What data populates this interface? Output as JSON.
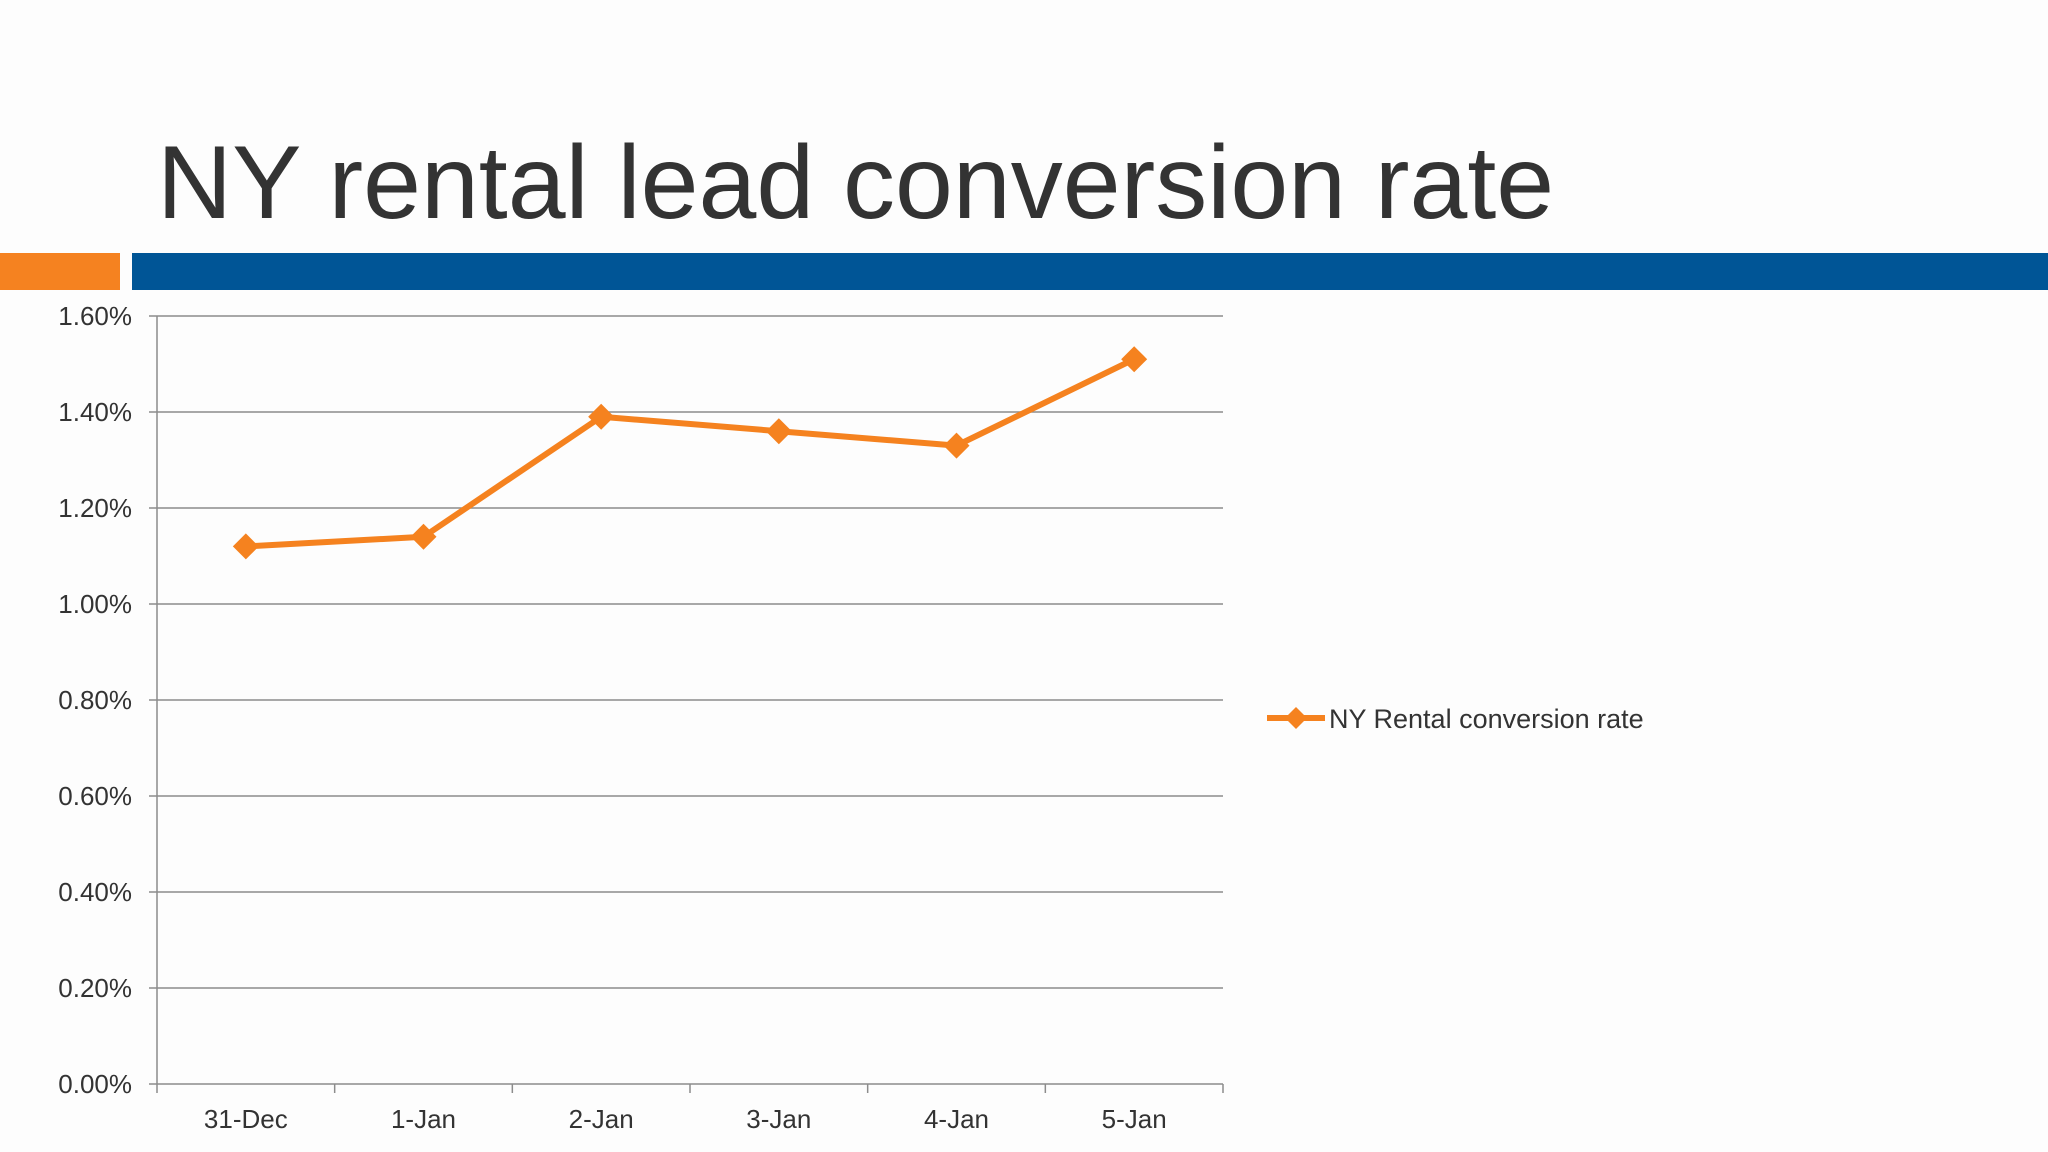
{
  "slide": {
    "title": "NY rental lead conversion rate"
  },
  "colors": {
    "accent_orange": "#f58220",
    "accent_blue": "#005596",
    "series": "#f5821f",
    "gridline": "#8c8c8c",
    "text": "#333333"
  },
  "chart_data": {
    "type": "line",
    "title": "",
    "xlabel": "",
    "ylabel": "",
    "categories": [
      "31-Dec",
      "1-Jan",
      "2-Jan",
      "3-Jan",
      "4-Jan",
      "5-Jan"
    ],
    "series": [
      {
        "name": "NY Rental conversion rate",
        "values": [
          1.12,
          1.14,
          1.39,
          1.36,
          1.33,
          1.51
        ],
        "marker": "diamond"
      }
    ],
    "yticks": [
      "0.00%",
      "0.20%",
      "0.40%",
      "0.60%",
      "0.80%",
      "1.00%",
      "1.20%",
      "1.40%",
      "1.60%"
    ],
    "ylim": [
      0,
      1.6
    ],
    "yunit": "%",
    "grid": true,
    "legend_position": "right"
  }
}
